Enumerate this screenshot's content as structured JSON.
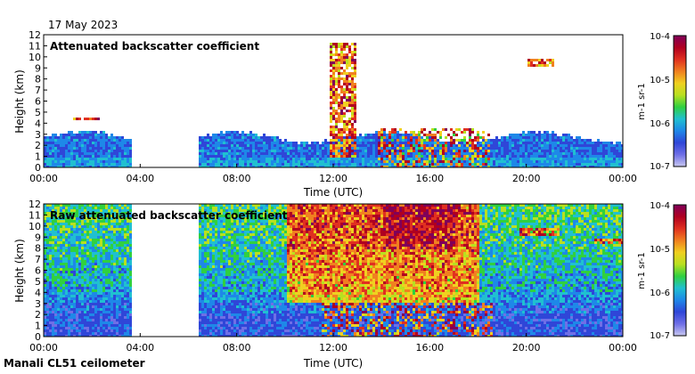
{
  "date": "17 May 2023",
  "footer": "Manali CL51 ceilometer",
  "colorbar": {
    "labels": [
      "10-4",
      "10-5",
      "10-6",
      "10-7"
    ],
    "unit": "m-1 sr-1",
    "colors": [
      "#c8c8f0",
      "#6f6fe6",
      "#2f46d8",
      "#1e88e8",
      "#20c0d0",
      "#30d040",
      "#b8e020",
      "#f0d020",
      "#f08020",
      "#e03020",
      "#b00020",
      "#80005a"
    ]
  },
  "chart_data": [
    {
      "type": "heatmap",
      "title": "Attenuated backscatter coefficient",
      "xlabel": "Time (UTC)",
      "ylabel": "Height (km)",
      "xticks": [
        "00:00",
        "04:00",
        "08:00",
        "12:00",
        "16:00",
        "20:00",
        "00:00"
      ],
      "yticks": [
        "0",
        "1",
        "2",
        "3",
        "4",
        "5",
        "6",
        "7",
        "8",
        "9",
        "10",
        "11",
        "12"
      ],
      "xlim_hours": [
        0,
        24
      ],
      "ylim_km": [
        0,
        12
      ],
      "colorbar_range": [
        "1e-7",
        "1e-4"
      ],
      "data_gap_hours": [
        3.65,
        6.35
      ],
      "features": [
        {
          "label": "boundary layer",
          "start_h": 0,
          "end_h": 24,
          "top_km": 3
        },
        {
          "label": "cloud",
          "time_h": 12.3,
          "height_km": [
            1,
            11.2
          ]
        },
        {
          "label": "cloud",
          "time_h": 20.5,
          "height_km": [
            9.2,
            9.8
          ]
        },
        {
          "label": "cloud",
          "time_h": 1.7,
          "height_km": [
            4.2,
            4.6
          ]
        },
        {
          "label": "low cloud",
          "start_h": 13.8,
          "end_h": 18.4,
          "height_km": [
            0,
            3.5
          ]
        }
      ]
    },
    {
      "type": "heatmap",
      "title": "Raw attenuated backscatter coefficient",
      "xlabel": "Time (UTC)",
      "ylabel": "Height (km)",
      "xticks": [
        "00:00",
        "04:00",
        "08:00",
        "12:00",
        "16:00",
        "20:00",
        "00:00"
      ],
      "yticks": [
        "0",
        "1",
        "2",
        "3",
        "4",
        "5",
        "6",
        "7",
        "8",
        "9",
        "10",
        "11",
        "12"
      ],
      "xlim_hours": [
        0,
        24
      ],
      "ylim_km": [
        0,
        12
      ],
      "colorbar_range": [
        "1e-7",
        "1e-4"
      ],
      "data_gap_hours": [
        3.65,
        6.35
      ],
      "features": [
        {
          "label": "noise",
          "start_h": 0,
          "end_h": 24,
          "top_km": 12
        },
        {
          "label": "cloud",
          "time_h": 20.5,
          "height_km": [
            9.2,
            9.8
          ]
        },
        {
          "label": "cloud",
          "time_h": 23.5,
          "height_km": [
            8.3,
            8.8
          ]
        },
        {
          "label": "low cloud",
          "start_h": 11.5,
          "end_h": 18.5,
          "height_km": [
            0,
            3
          ]
        }
      ]
    }
  ]
}
